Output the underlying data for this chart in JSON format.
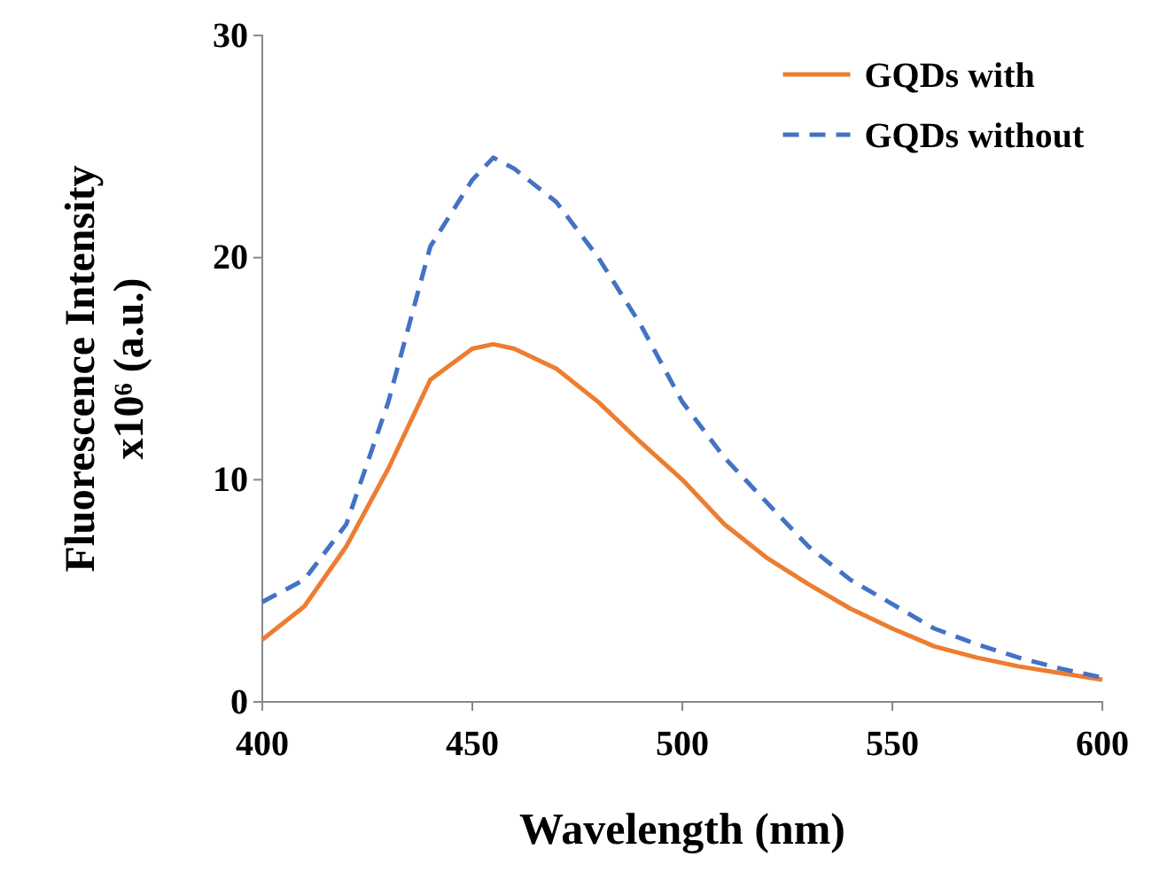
{
  "chart_data": {
    "type": "line",
    "xlabel": "Wavelength (nm)",
    "ylabel": "Fluorescence Intensity x10⁶ (a.u.)",
    "x": [
      400,
      410,
      420,
      430,
      440,
      450,
      455,
      460,
      470,
      480,
      490,
      500,
      510,
      520,
      530,
      540,
      550,
      560,
      570,
      580,
      590,
      600
    ],
    "series": [
      {
        "name": "GQDs with",
        "color": "#ed7d31",
        "line_style": "solid",
        "values": [
          2.8,
          4.3,
          7,
          10.5,
          14.5,
          15.9,
          16.1,
          15.9,
          15,
          13.5,
          11.7,
          10,
          8,
          6.5,
          5.3,
          4.2,
          3.3,
          2.5,
          2,
          1.6,
          1.3,
          1.0
        ]
      },
      {
        "name": "GQDs without",
        "color": "#4472c4",
        "line_style": "dashed",
        "values": [
          4.5,
          5.5,
          8,
          13.5,
          20.5,
          23.5,
          24.5,
          24,
          22.5,
          20,
          17,
          13.5,
          11,
          9,
          7,
          5.5,
          4.4,
          3.3,
          2.6,
          2,
          1.5,
          1.1
        ]
      }
    ],
    "xlim": [
      400,
      600
    ],
    "xticks": [
      400,
      450,
      500,
      550,
      600
    ],
    "ylim": [
      0,
      30
    ],
    "yticks": [
      0,
      10,
      20,
      30
    ],
    "grid": false,
    "legend": "top right",
    "marker": "none"
  }
}
